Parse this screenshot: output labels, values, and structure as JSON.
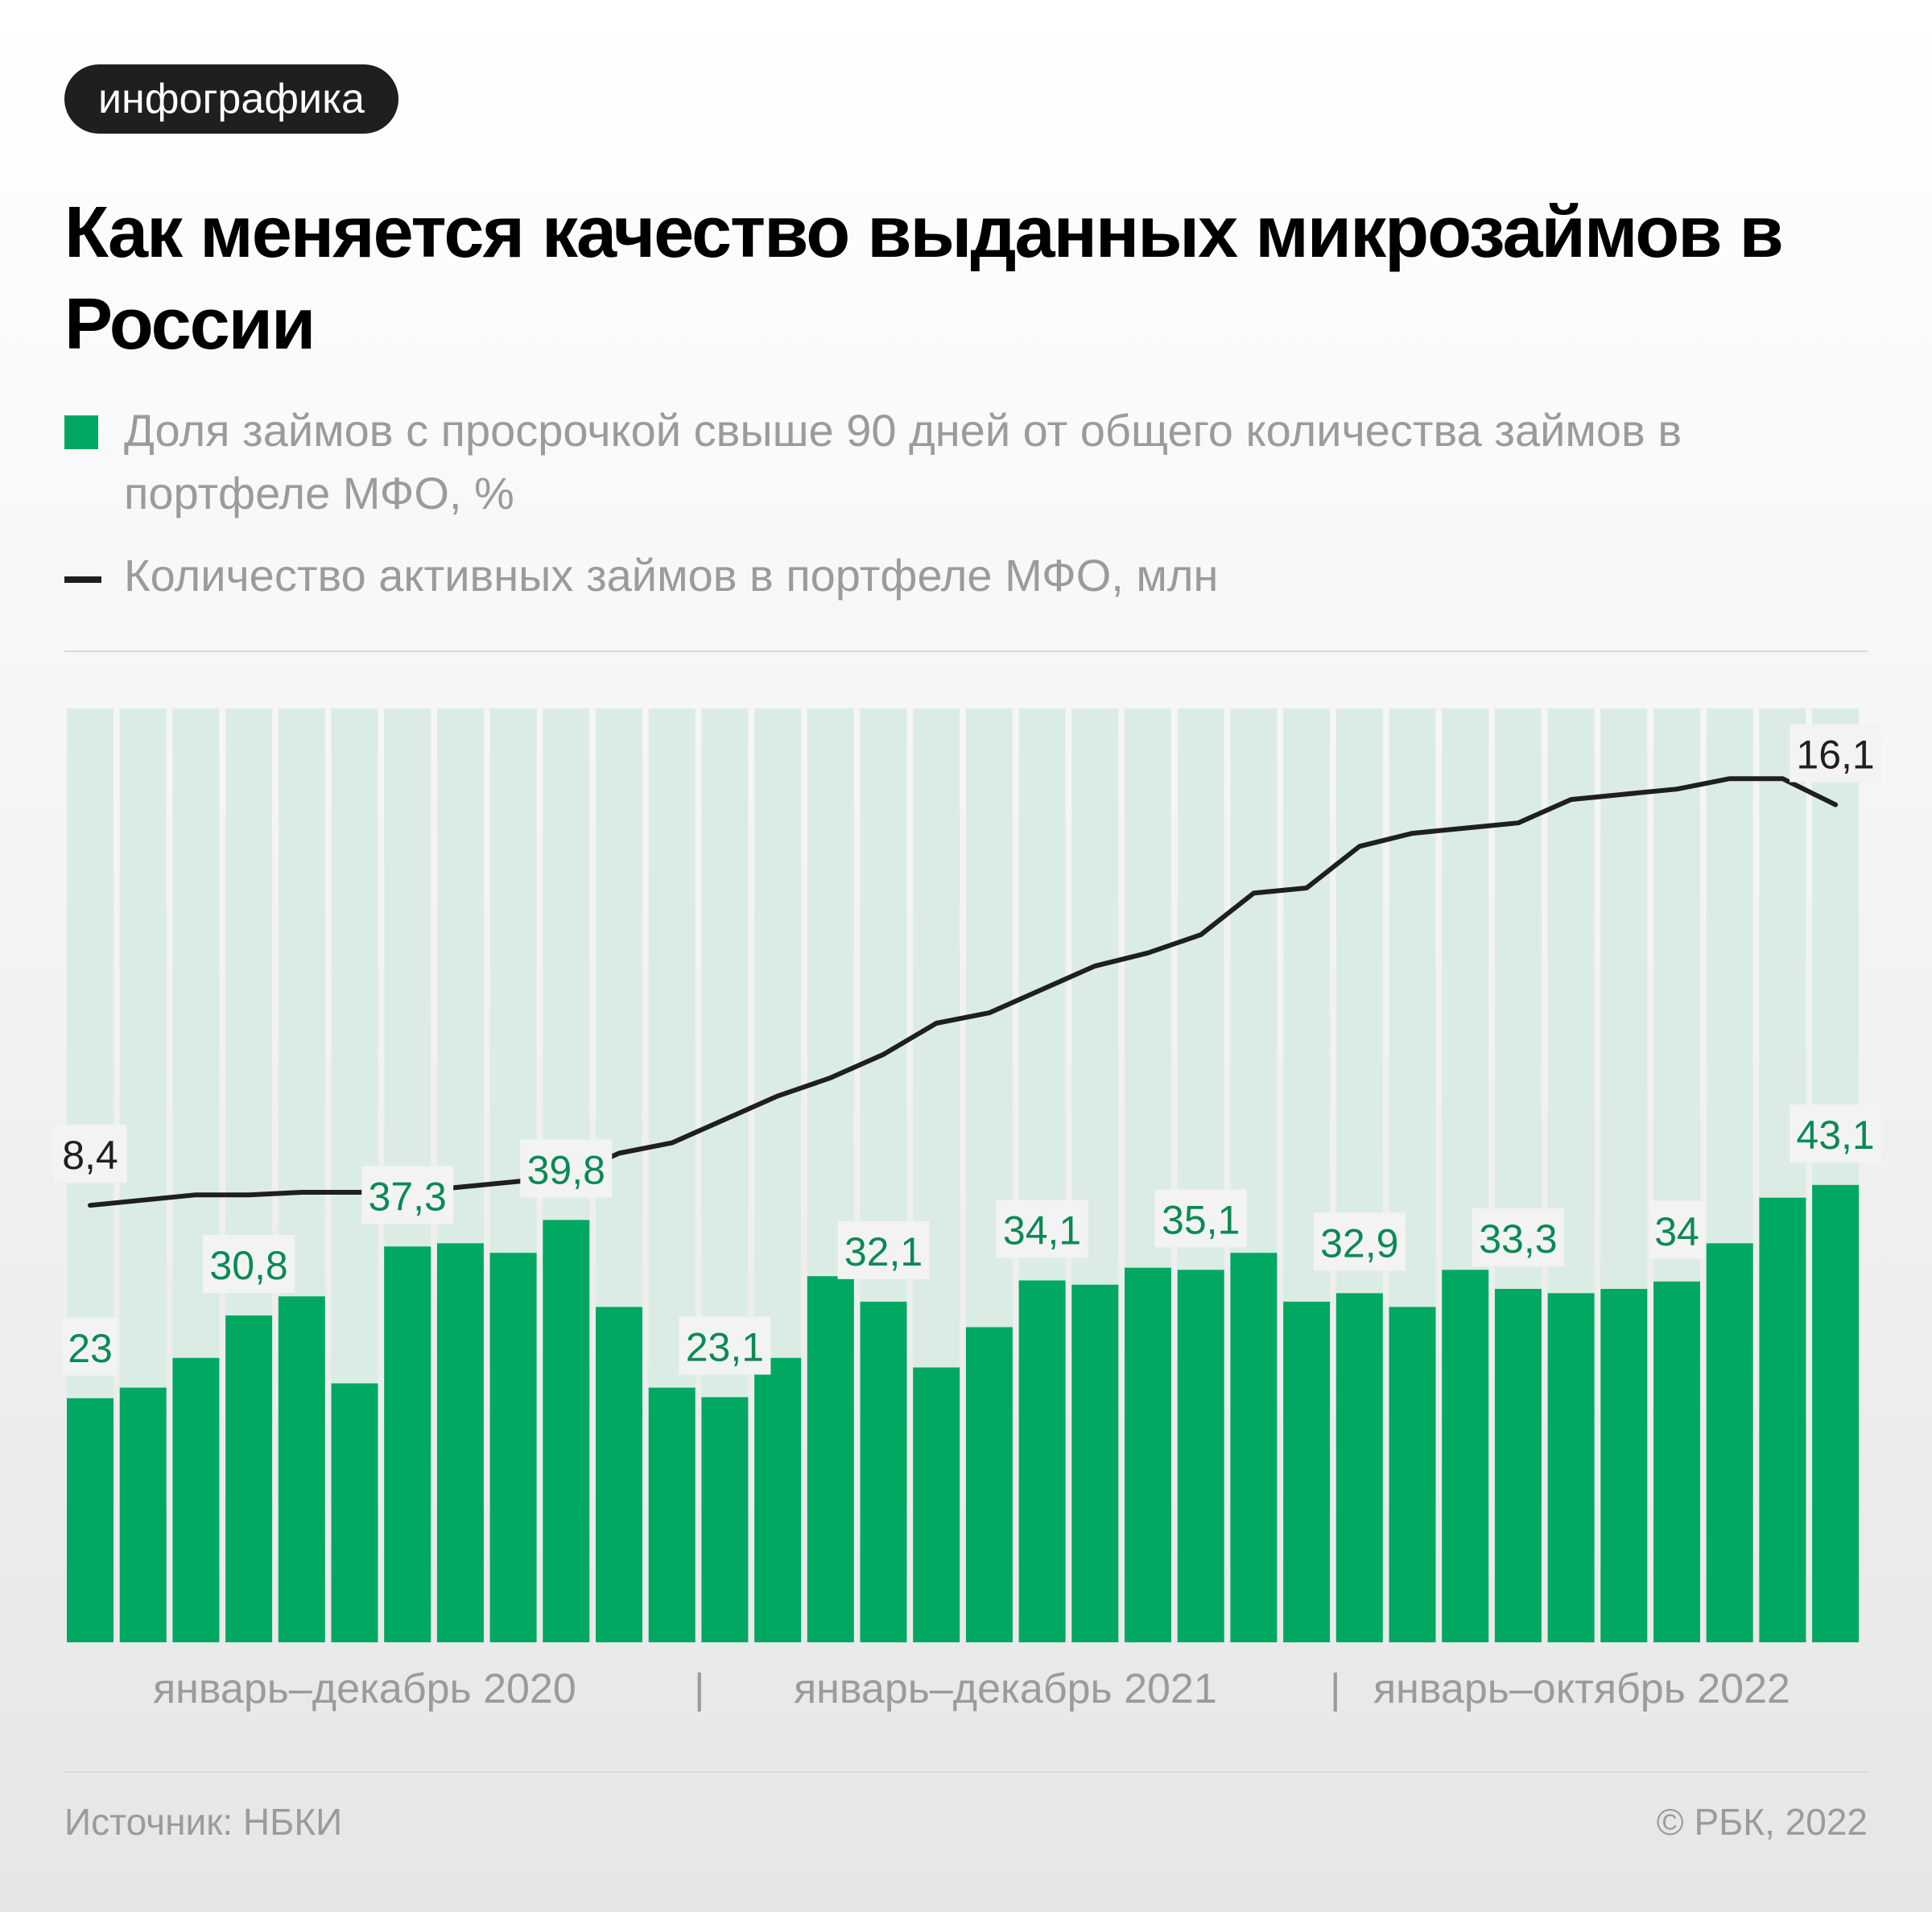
{
  "badge": "инфографика",
  "title": "Как меняется качество выданных микрозаймов в России",
  "legend": {
    "bars_label": "Доля займов с просрочкой свыше 90 дней от общего количества займов в портфеле МФО, %",
    "line_label": "Количество активных займов в портфеле МФО, млн"
  },
  "colors": {
    "bar": "#00a862",
    "bar_background": "#dbece4",
    "bar_label": "#0a8a55",
    "line": "#1f1f1f",
    "label_background": "#f3f3f3"
  },
  "periods": [
    "январь–декабрь 2020",
    "январь–декабрь 2021",
    "январь–октябрь 2022"
  ],
  "separator": "|",
  "source": "Источник: НБКИ",
  "copyright": "© РБК, 2022",
  "chart_data": {
    "type": "bar",
    "months": 34,
    "series": [
      {
        "name": "Доля займов с просрочкой свыше 90 дней от общего количества займов в портфеле МФО, %",
        "type": "bar",
        "values": [
          23,
          24,
          26.8,
          30.8,
          32.6,
          24.4,
          37.3,
          37.6,
          36.7,
          39.8,
          31.6,
          24,
          23.1,
          26.8,
          34.5,
          32.1,
          25.9,
          29.7,
          34.1,
          33.7,
          35.3,
          35.1,
          36.7,
          32.1,
          32.9,
          31.6,
          35.1,
          33.3,
          32.9,
          33.3,
          34,
          37.6,
          41.9,
          43.1
        ]
      },
      {
        "name": "Количество активных займов в портфеле МФО, млн",
        "type": "line",
        "values": [
          8.4,
          8.5,
          8.6,
          8.6,
          8.65,
          8.65,
          8.65,
          8.75,
          8.85,
          8.95,
          9.4,
          9.6,
          10.05,
          10.5,
          10.85,
          11.3,
          11.9,
          12.1,
          12.55,
          13.0,
          13.25,
          13.6,
          14.4,
          14.5,
          15.3,
          15.55,
          15.65,
          15.75,
          16.2,
          16.3,
          16.4,
          16.6,
          16.6,
          16.1
        ]
      }
    ],
    "bar_labels": [
      {
        "index": 0,
        "text": "23"
      },
      {
        "index": 3,
        "text": "30,8"
      },
      {
        "index": 6,
        "text": "37,3"
      },
      {
        "index": 9,
        "text": "39,8"
      },
      {
        "index": 12,
        "text": "23,1"
      },
      {
        "index": 15,
        "text": "32,1"
      },
      {
        "index": 18,
        "text": "34,1"
      },
      {
        "index": 21,
        "text": "35,1"
      },
      {
        "index": 24,
        "text": "32,9"
      },
      {
        "index": 27,
        "text": "33,3"
      },
      {
        "index": 30,
        "text": "34"
      },
      {
        "index": 33,
        "text": "43,1"
      }
    ],
    "line_labels": [
      {
        "index": 0,
        "text": "8,4"
      },
      {
        "index": 33,
        "text": "16,1"
      }
    ],
    "bar_scale": {
      "min": 0,
      "max": 88
    },
    "line_scale": {
      "min": 0,
      "max": 17.95
    },
    "grid": false
  }
}
